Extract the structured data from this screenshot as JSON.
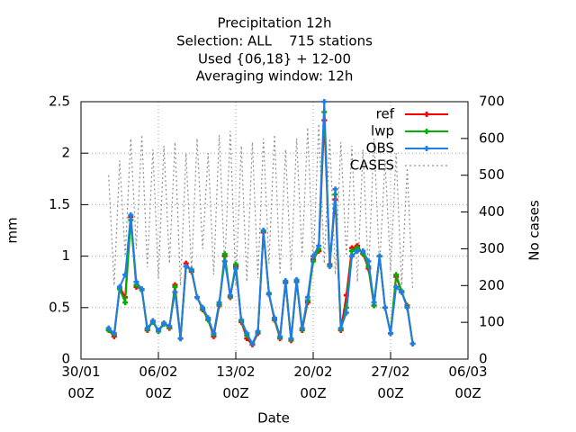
{
  "chart_data": {
    "type": "line",
    "title": [
      "Precipitation 12h",
      "Selection: ALL    715 stations",
      "Used {06,18} + 12-00",
      "Averaging window: 12h"
    ],
    "x_label": "Date",
    "y_label": "mm",
    "y2_label": "No cases",
    "x": [
      "01/02 12Z",
      "02/02 00Z",
      "02/02 12Z",
      "03/02 00Z",
      "03/02 12Z",
      "04/02 00Z",
      "04/02 12Z",
      "05/02 00Z",
      "05/02 12Z",
      "06/02 00Z",
      "06/02 12Z",
      "07/02 00Z",
      "07/02 12Z",
      "08/02 00Z",
      "08/02 12Z",
      "09/02 00Z",
      "09/02 12Z",
      "10/02 00Z",
      "10/02 12Z",
      "11/02 00Z",
      "11/02 12Z",
      "12/02 00Z",
      "12/02 12Z",
      "13/02 00Z",
      "13/02 12Z",
      "14/02 00Z",
      "14/02 12Z",
      "15/02 00Z",
      "15/02 12Z",
      "16/02 00Z",
      "16/02 12Z",
      "17/02 00Z",
      "17/02 12Z",
      "18/02 00Z",
      "18/02 12Z",
      "19/02 00Z",
      "19/02 12Z",
      "20/02 00Z",
      "20/02 12Z",
      "21/02 00Z",
      "21/02 12Z",
      "22/02 00Z",
      "22/02 12Z",
      "23/02 00Z",
      "23/02 12Z",
      "24/02 00Z",
      "24/02 12Z",
      "25/02 00Z",
      "25/02 12Z",
      "26/02 00Z",
      "26/02 12Z",
      "27/02 00Z",
      "27/02 12Z",
      "28/02 00Z",
      "28/02 12Z",
      "01/03 00Z"
    ],
    "series": [
      {
        "name": "CASES",
        "color": "#909090",
        "axis": "y2",
        "dash": true,
        "values": [
          500,
          200,
          540,
          280,
          600,
          300,
          610,
          250,
          570,
          220,
          580,
          260,
          590,
          200,
          560,
          240,
          600,
          300,
          560,
          230,
          610,
          250,
          620,
          200,
          580,
          210,
          590,
          220,
          600,
          260,
          610,
          230,
          570,
          240,
          600,
          280,
          630,
          250,
          640,
          260,
          600,
          230,
          590,
          280,
          580,
          210,
          570,
          230,
          600,
          250,
          540,
          240,
          560,
          200,
          520,
          190
        ]
      },
      {
        "name": "ref",
        "color": "#ff0000",
        "values": [
          0.28,
          0.22,
          0.7,
          0.6,
          1.38,
          0.7,
          0.68,
          0.28,
          0.37,
          0.27,
          0.35,
          0.3,
          0.72,
          0.2,
          0.93,
          0.85,
          0.6,
          0.48,
          0.38,
          0.22,
          0.52,
          1.0,
          0.6,
          0.9,
          0.36,
          0.2,
          0.14,
          0.25,
          1.23,
          0.63,
          0.38,
          0.2,
          0.74,
          0.18,
          0.75,
          0.28,
          0.55,
          0.97,
          1.05,
          2.32,
          0.92,
          1.55,
          0.28,
          0.62,
          1.08,
          1.1,
          1.02,
          0.88,
          0.52,
          1.0,
          0.5,
          0.25,
          0.8,
          0.65,
          0.52,
          0.15
        ]
      },
      {
        "name": "lwp",
        "color": "#00b000",
        "values": [
          0.28,
          0.24,
          0.68,
          0.55,
          1.35,
          0.72,
          0.67,
          0.29,
          0.36,
          0.27,
          0.34,
          0.31,
          0.7,
          0.2,
          0.9,
          0.86,
          0.6,
          0.49,
          0.38,
          0.24,
          0.53,
          1.02,
          0.61,
          0.92,
          0.37,
          0.23,
          0.15,
          0.26,
          1.24,
          0.64,
          0.39,
          0.21,
          0.75,
          0.19,
          0.76,
          0.29,
          0.57,
          0.95,
          1.07,
          2.4,
          0.91,
          1.6,
          0.29,
          0.5,
          1.05,
          1.08,
          1.03,
          0.9,
          0.52,
          1.0,
          0.5,
          0.25,
          0.82,
          0.66,
          0.51,
          0.15
        ]
      },
      {
        "name": "OBS",
        "color": "#1e7de6",
        "values": [
          0.3,
          0.25,
          0.7,
          0.82,
          1.4,
          0.75,
          0.68,
          0.3,
          0.37,
          0.28,
          0.35,
          0.32,
          0.65,
          0.2,
          0.9,
          0.87,
          0.6,
          0.5,
          0.4,
          0.25,
          0.55,
          0.95,
          0.62,
          0.88,
          0.38,
          0.25,
          0.15,
          0.27,
          1.25,
          0.63,
          0.4,
          0.22,
          0.76,
          0.2,
          0.77,
          0.3,
          0.6,
          1.0,
          1.1,
          2.5,
          0.9,
          1.65,
          0.3,
          0.45,
          1.0,
          1.05,
          1.05,
          0.95,
          0.55,
          1.0,
          0.5,
          0.25,
          0.7,
          0.65,
          0.5,
          0.15
        ]
      }
    ],
    "xlim": [
      "30/01 00Z",
      "06/03 00Z"
    ],
    "xticks": [
      "30/01 00Z",
      "06/02 00Z",
      "13/02 00Z",
      "20/02 00Z",
      "27/02 00Z",
      "06/03 00Z"
    ],
    "ylim": [
      0,
      2.5
    ],
    "yticks": [
      0,
      0.5,
      1,
      1.5,
      2,
      2.5
    ],
    "y2lim": [
      0,
      700
    ],
    "y2ticks": [
      0,
      100,
      200,
      300,
      400,
      500,
      600,
      700
    ],
    "grid": true,
    "legend": "top right"
  }
}
